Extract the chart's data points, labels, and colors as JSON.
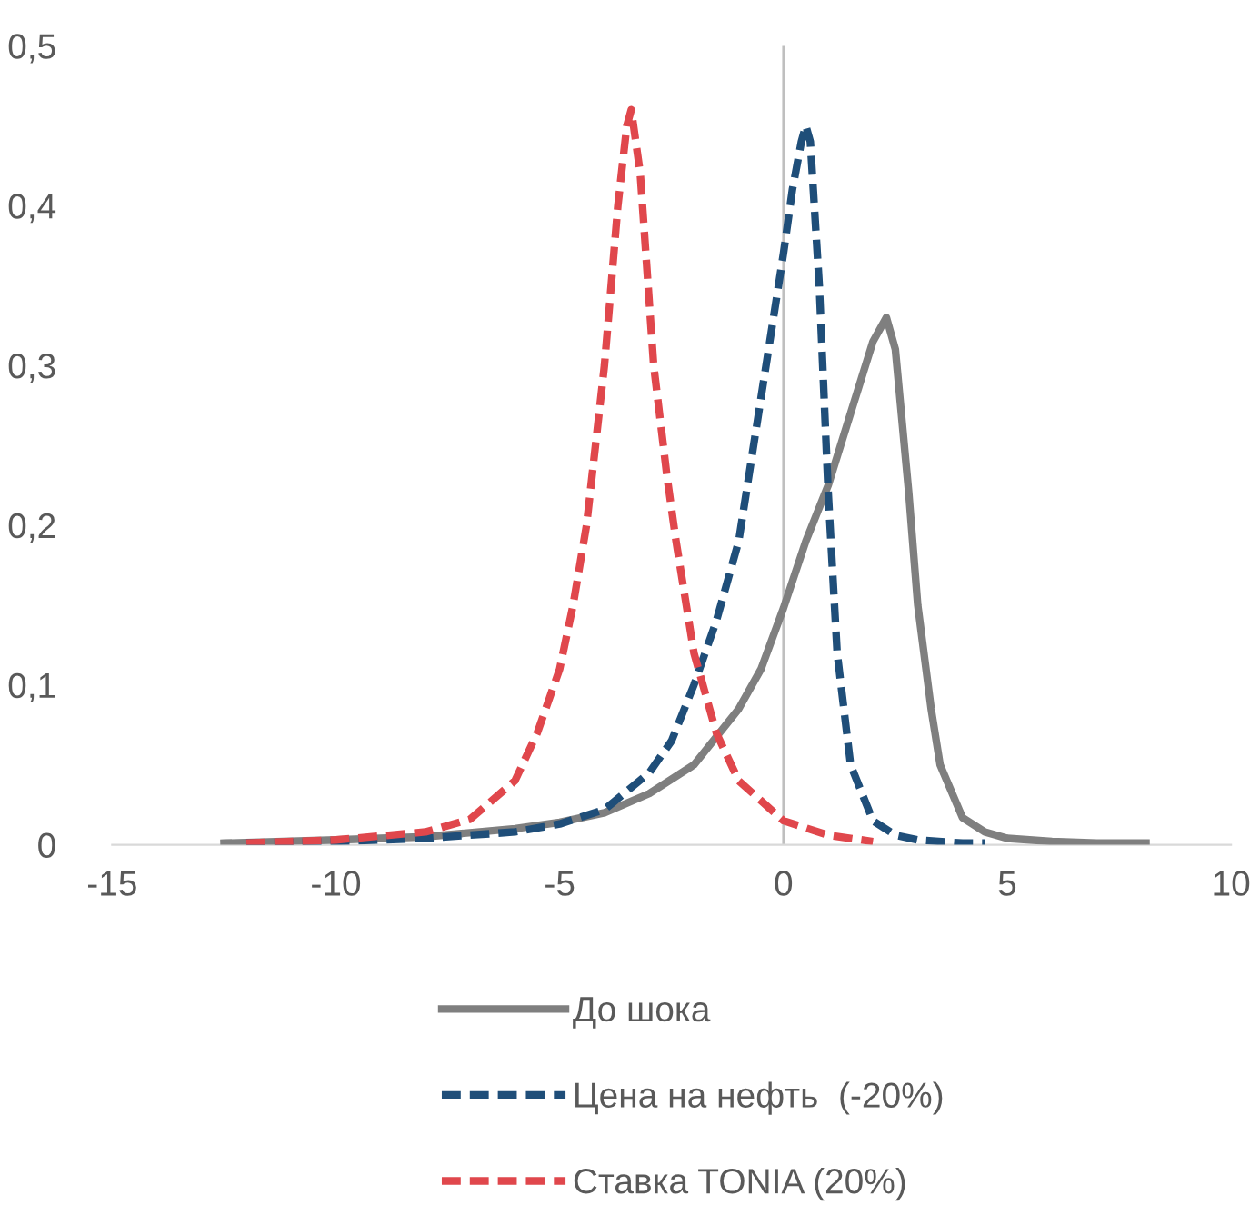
{
  "chart_data": {
    "type": "line",
    "xlim": [
      -15,
      10
    ],
    "ylim": [
      0,
      0.5
    ],
    "xticks": [
      -15,
      -10,
      -5,
      0,
      5,
      10
    ],
    "yticks": [
      0,
      {
        "value": 0.1,
        "label": "0,1"
      },
      {
        "value": 0.2,
        "label": "0,2"
      },
      {
        "value": 0.3,
        "label": "0,3"
      },
      {
        "value": 0.4,
        "label": "0,4"
      },
      {
        "value": 0.5,
        "label": "0,5"
      }
    ],
    "grid": false,
    "legend": "bottom",
    "marker": "none",
    "ref_lines": [
      {
        "axis": "x",
        "value": 0,
        "color": "#bfbfbf"
      }
    ],
    "series": [
      {
        "name": "До шока",
        "color": "#7f7f7f",
        "line_style": "solid",
        "x": [
          -12.5,
          -10,
          -8,
          -6,
          -5,
          -4,
          -3,
          -2,
          -1,
          -0.5,
          0,
          0.5,
          1,
          1.5,
          2,
          2.3,
          2.5,
          2.8,
          3,
          3.3,
          3.5,
          4,
          4.5,
          5,
          6,
          7,
          8.1
        ],
        "values": [
          0.001,
          0.003,
          0.005,
          0.01,
          0.014,
          0.02,
          0.032,
          0.05,
          0.085,
          0.11,
          0.148,
          0.19,
          0.225,
          0.27,
          0.315,
          0.33,
          0.31,
          0.22,
          0.15,
          0.085,
          0.05,
          0.017,
          0.008,
          0.004,
          0.002,
          0.001,
          0.001
        ]
      },
      {
        "name": "Цена на нефть  (-20%)",
        "color": "#1f4e79",
        "line_style": "dashed",
        "x": [
          -12,
          -10,
          -8,
          -6,
          -5,
          -4,
          -3,
          -2.5,
          -2,
          -1.5,
          -1,
          -0.5,
          0,
          0.2,
          0.4,
          0.5,
          0.6,
          0.8,
          1,
          1.2,
          1.5,
          2,
          2.5,
          3,
          4,
          4.5
        ],
        "values": [
          0.001,
          0.002,
          0.004,
          0.008,
          0.013,
          0.022,
          0.045,
          0.065,
          0.1,
          0.14,
          0.19,
          0.28,
          0.37,
          0.41,
          0.44,
          0.45,
          0.44,
          0.35,
          0.22,
          0.12,
          0.05,
          0.015,
          0.006,
          0.003,
          0.001,
          0.001
        ]
      },
      {
        "name": "Ставка TONIA (20%)",
        "color": "#e0474c",
        "line_style": "dashed",
        "x": [
          -12,
          -10,
          -8,
          -7,
          -6,
          -5.5,
          -5,
          -4.7,
          -4.4,
          -4,
          -3.7,
          -3.5,
          -3.4,
          -3.2,
          -2.9,
          -2.6,
          -2.4,
          -2,
          -1.5,
          -1,
          0,
          1,
          2
        ],
        "values": [
          0.001,
          0.003,
          0.008,
          0.016,
          0.04,
          0.07,
          0.11,
          0.15,
          0.2,
          0.3,
          0.4,
          0.45,
          0.46,
          0.42,
          0.3,
          0.23,
          0.19,
          0.12,
          0.07,
          0.04,
          0.015,
          0.006,
          0.002
        ]
      }
    ]
  }
}
